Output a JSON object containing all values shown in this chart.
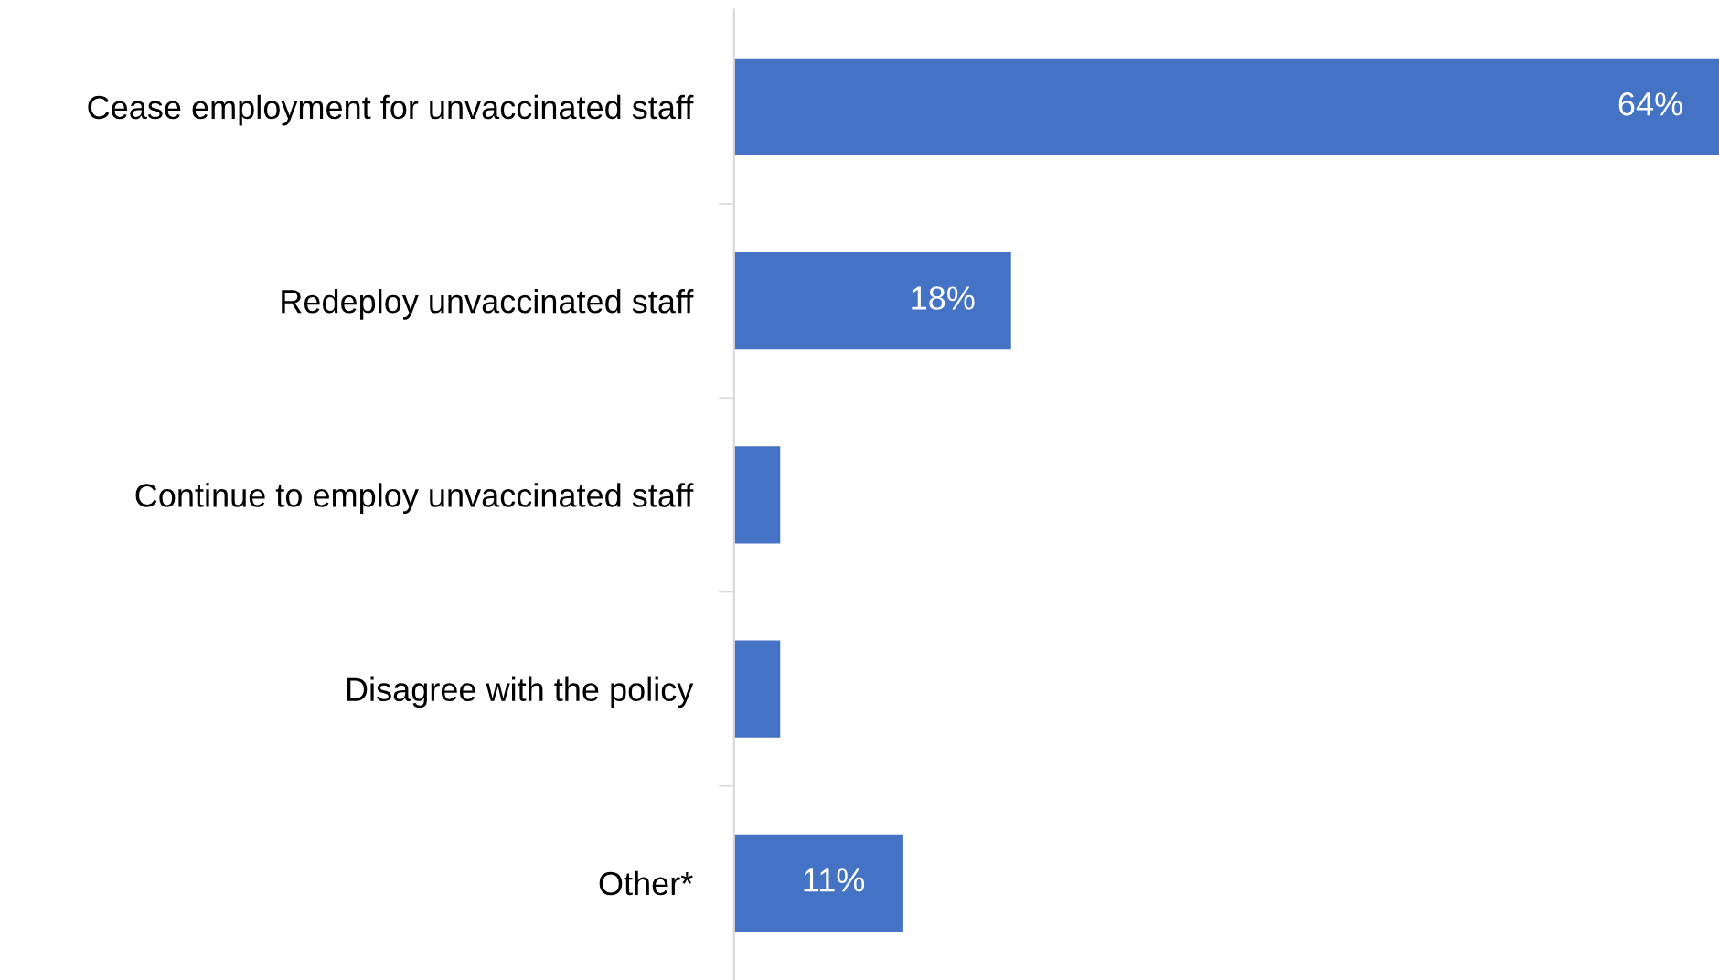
{
  "chart_data": {
    "type": "bar",
    "orientation": "horizontal",
    "categories": [
      "Cease employment for unvaccinated staff",
      "Redeploy unvaccinated staff",
      "Continue to employ unvaccinated staff",
      "Disagree with the policy",
      "Other*"
    ],
    "values": [
      64,
      18,
      3,
      3,
      11
    ],
    "value_labels": [
      "64%",
      "18%",
      null,
      null,
      "11%"
    ],
    "color": "#4472c4",
    "xlim": [
      0,
      64
    ],
    "tick_labels": "y",
    "grid": false,
    "legend": false
  }
}
